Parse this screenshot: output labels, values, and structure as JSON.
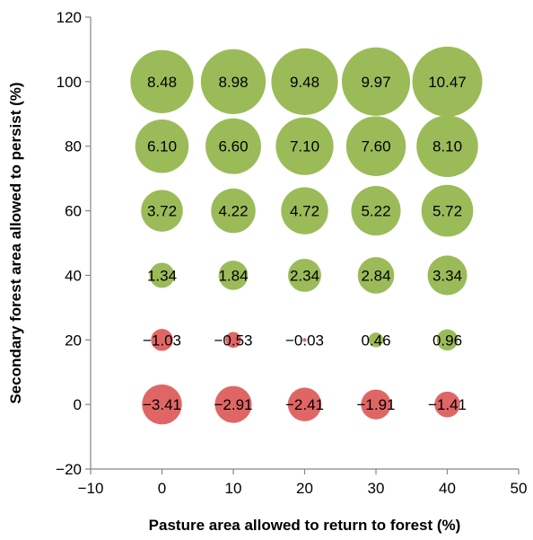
{
  "chart_data": {
    "type": "bubble",
    "title": "",
    "xlabel": "Pasture area allowed to return to forest (%)",
    "ylabel": "Secondary forest area allowed to persist (%)",
    "xlim": [
      -10,
      50
    ],
    "ylim": [
      -20,
      120
    ],
    "xticks": [
      -10,
      0,
      10,
      20,
      30,
      40,
      50
    ],
    "yticks": [
      -20,
      0,
      20,
      40,
      60,
      80,
      100,
      120
    ],
    "xtick_labels": [
      "−10",
      "0",
      "10",
      "20",
      "30",
      "40",
      "50"
    ],
    "ytick_labels": [
      "−20",
      "0",
      "20",
      "40",
      "60",
      "80",
      "100",
      "120"
    ],
    "grid": false,
    "legend": "none",
    "colors": {
      "positive": "#9bbb59",
      "negative": "#e06666"
    },
    "points": [
      {
        "x": 0,
        "y": 0,
        "value": -3.41,
        "label": "−3.41"
      },
      {
        "x": 10,
        "y": 0,
        "value": -2.91,
        "label": "−2.91"
      },
      {
        "x": 20,
        "y": 0,
        "value": -2.41,
        "label": "−2.41"
      },
      {
        "x": 30,
        "y": 0,
        "value": -1.91,
        "label": "−1.91"
      },
      {
        "x": 40,
        "y": 0,
        "value": -1.41,
        "label": "−1.41"
      },
      {
        "x": 0,
        "y": 20,
        "value": -1.03,
        "label": "−1.03"
      },
      {
        "x": 10,
        "y": 20,
        "value": -0.53,
        "label": "−0.53"
      },
      {
        "x": 20,
        "y": 20,
        "value": -0.03,
        "label": "−0.03"
      },
      {
        "x": 30,
        "y": 20,
        "value": 0.46,
        "label": "0.46"
      },
      {
        "x": 40,
        "y": 20,
        "value": 0.96,
        "label": "0.96"
      },
      {
        "x": 0,
        "y": 40,
        "value": 1.34,
        "label": "1.34"
      },
      {
        "x": 10,
        "y": 40,
        "value": 1.84,
        "label": "1.84"
      },
      {
        "x": 20,
        "y": 40,
        "value": 2.34,
        "label": "2.34"
      },
      {
        "x": 30,
        "y": 40,
        "value": 2.84,
        "label": "2.84"
      },
      {
        "x": 40,
        "y": 40,
        "value": 3.34,
        "label": "3.34"
      },
      {
        "x": 0,
        "y": 60,
        "value": 3.72,
        "label": "3.72"
      },
      {
        "x": 10,
        "y": 60,
        "value": 4.22,
        "label": "4.22"
      },
      {
        "x": 20,
        "y": 60,
        "value": 4.72,
        "label": "4.72"
      },
      {
        "x": 30,
        "y": 60,
        "value": 5.22,
        "label": "5.22"
      },
      {
        "x": 40,
        "y": 60,
        "value": 5.72,
        "label": "5.72"
      },
      {
        "x": 0,
        "y": 80,
        "value": 6.1,
        "label": "6.10"
      },
      {
        "x": 10,
        "y": 80,
        "value": 6.6,
        "label": "6.60"
      },
      {
        "x": 20,
        "y": 80,
        "value": 7.1,
        "label": "7.10"
      },
      {
        "x": 30,
        "y": 80,
        "value": 7.6,
        "label": "7.60"
      },
      {
        "x": 40,
        "y": 80,
        "value": 8.1,
        "label": "8.10"
      },
      {
        "x": 0,
        "y": 100,
        "value": 8.48,
        "label": "8.48"
      },
      {
        "x": 10,
        "y": 100,
        "value": 8.98,
        "label": "8.98"
      },
      {
        "x": 20,
        "y": 100,
        "value": 9.48,
        "label": "9.48"
      },
      {
        "x": 30,
        "y": 100,
        "value": 9.97,
        "label": "9.97"
      },
      {
        "x": 40,
        "y": 100,
        "value": 10.47,
        "label": "10.47"
      }
    ]
  }
}
